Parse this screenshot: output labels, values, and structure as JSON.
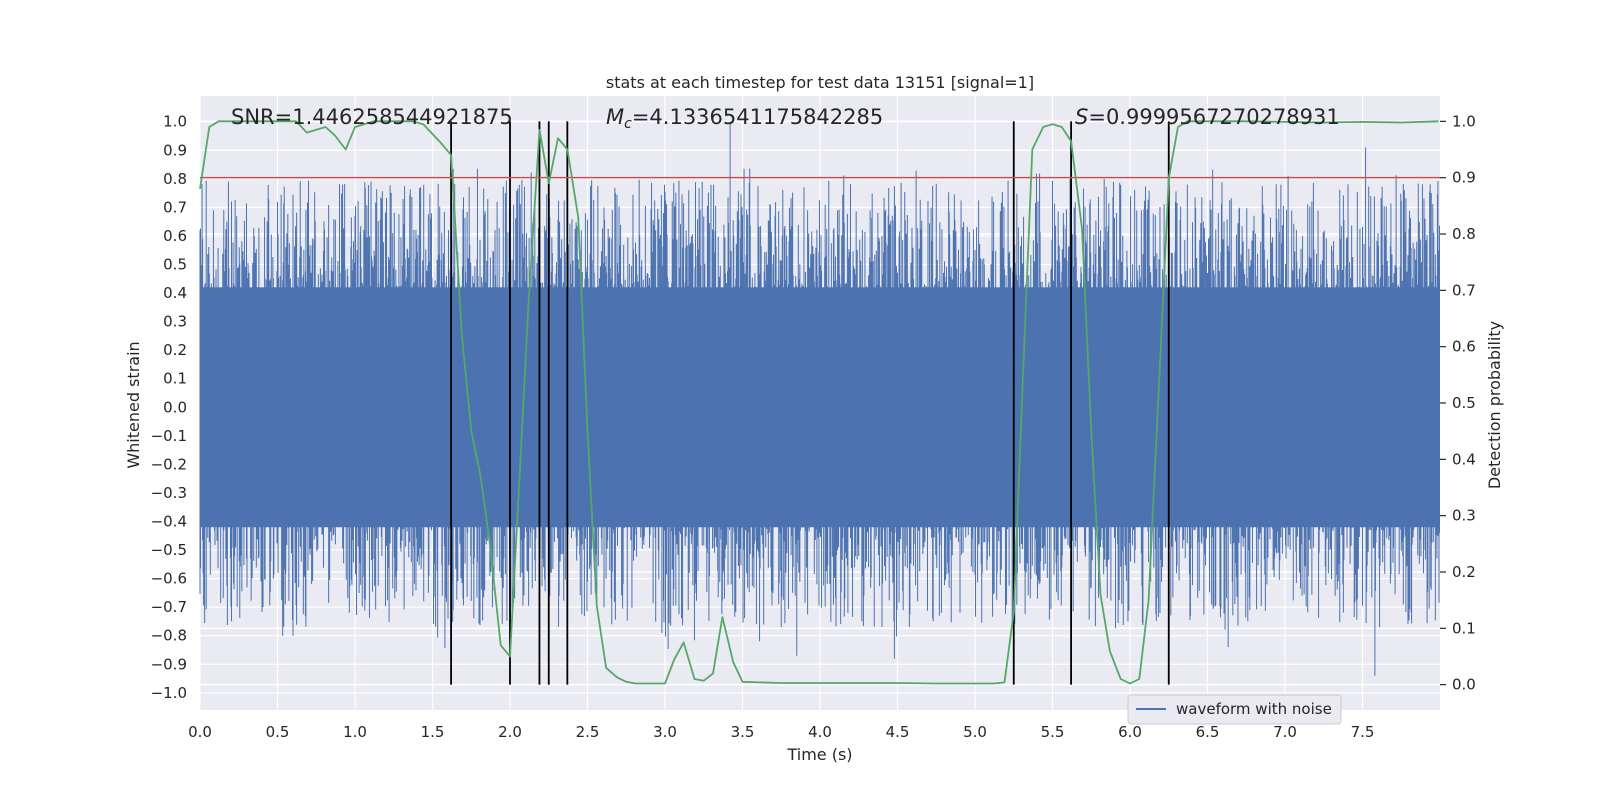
{
  "chart_data": {
    "type": "line",
    "title": "stats at each timestep for test data 13151 [signal=1]",
    "xlabel": "Time (s)",
    "ylabel_left": "Whitened strain",
    "ylabel_right": "Detection probability",
    "xlim": [
      0.0,
      8.0
    ],
    "ylim_left": [
      -1.06,
      1.09
    ],
    "ylim_right": [
      -0.045,
      1.045
    ],
    "x_ticks": [
      "0.0",
      "0.5",
      "1.0",
      "1.5",
      "2.0",
      "2.5",
      "3.0",
      "3.5",
      "4.0",
      "4.5",
      "5.0",
      "5.5",
      "6.0",
      "6.5",
      "7.0",
      "7.5"
    ],
    "y_left_ticks": [
      "1.0",
      "0.9",
      "0.8",
      "0.7",
      "0.6",
      "0.5",
      "0.4",
      "0.3",
      "0.2",
      "0.1",
      "0.0",
      "−0.1",
      "−0.2",
      "−0.3",
      "−0.4",
      "−0.5",
      "−0.6",
      "−0.7",
      "−0.8",
      "−0.9",
      "−1.0"
    ],
    "y_right_ticks": [
      "1.0",
      "0.9",
      "0.8",
      "0.7",
      "0.6",
      "0.5",
      "0.4",
      "0.3",
      "0.2",
      "0.1",
      "0.0"
    ],
    "annotations": {
      "snr": "SNR=1.446258544921875",
      "mc_symbol": "M",
      "mc_sub": "c",
      "mc_value": "=4.1336541175842285",
      "s_symbol": "S",
      "s_value": "=0.9999567270278931"
    },
    "threshold": 0.9,
    "vlines": [
      1.62,
      2.0,
      2.19,
      2.25,
      2.37,
      5.25,
      5.62,
      6.25
    ],
    "legend": {
      "label": "waveform with noise",
      "placement": "lower-right"
    },
    "series": [
      {
        "name": "waveform with noise",
        "style": "noise",
        "duration": 8.0,
        "core_amplitude": 0.42,
        "max_spike": 1.0,
        "min_spike": -0.94
      },
      {
        "name": "detection probability",
        "axis": "right",
        "x": [
          0.0,
          0.06,
          0.12,
          0.25,
          0.5,
          0.62,
          0.69,
          0.75,
          0.81,
          0.87,
          0.94,
          1.0,
          1.12,
          1.25,
          1.37,
          1.44,
          1.56,
          1.62,
          1.69,
          1.75,
          1.81,
          1.87,
          1.94,
          2.0,
          2.06,
          2.12,
          2.19,
          2.25,
          2.31,
          2.37,
          2.44,
          2.5,
          2.56,
          2.62,
          2.69,
          2.75,
          2.81,
          3.0,
          3.06,
          3.12,
          3.19,
          3.25,
          3.31,
          3.37,
          3.44,
          3.5,
          3.62,
          3.75,
          4.0,
          4.5,
          4.75,
          5.0,
          5.06,
          5.12,
          5.19,
          5.25,
          5.31,
          5.37,
          5.44,
          5.5,
          5.56,
          5.62,
          5.69,
          5.75,
          5.81,
          5.87,
          5.94,
          6.0,
          6.06,
          6.12,
          6.19,
          6.25,
          6.31,
          6.37,
          6.5,
          6.75,
          7.0,
          7.25,
          7.5,
          7.75,
          7.99
        ],
        "values": [
          0.88,
          0.99,
          1.0,
          1.0,
          1.0,
          1.0,
          0.98,
          0.985,
          0.99,
          0.975,
          0.95,
          0.99,
          1.0,
          1.0,
          1.0,
          0.995,
          0.96,
          0.94,
          0.62,
          0.45,
          0.37,
          0.25,
          0.07,
          0.05,
          0.36,
          0.68,
          0.985,
          0.89,
          0.97,
          0.95,
          0.83,
          0.45,
          0.14,
          0.03,
          0.013,
          0.005,
          0.002,
          0.002,
          0.045,
          0.075,
          0.01,
          0.007,
          0.02,
          0.12,
          0.04,
          0.005,
          0.004,
          0.003,
          0.003,
          0.003,
          0.002,
          0.002,
          0.002,
          0.002,
          0.004,
          0.13,
          0.55,
          0.95,
          0.99,
          0.995,
          0.99,
          0.965,
          0.81,
          0.45,
          0.16,
          0.06,
          0.01,
          0.002,
          0.01,
          0.15,
          0.55,
          0.9,
          0.99,
          1.0,
          1.0,
          1.0,
          0.999,
          0.998,
          0.999,
          0.998,
          1.0
        ]
      }
    ]
  }
}
